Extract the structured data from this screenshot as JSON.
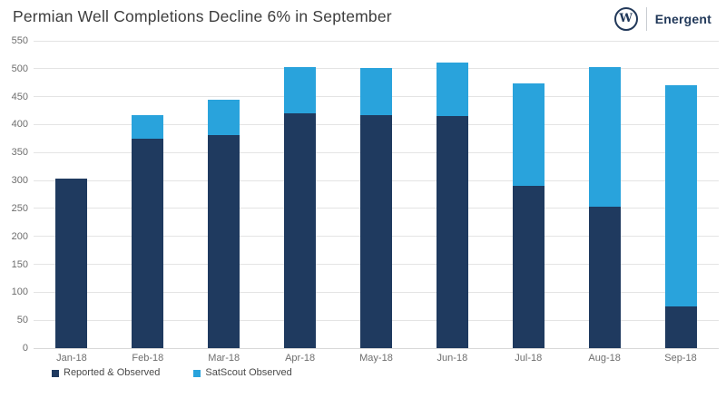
{
  "header": {
    "title": "Permian Well Completions Decline 6% in September",
    "logo": {
      "monogram": "W",
      "brand": "Energent"
    }
  },
  "colors": {
    "reported": "#1f3a5f",
    "satscout": "#29a3dc",
    "grid": "#e4e4e4",
    "axis_text": "#6e6e6e",
    "title_text": "#3d3d3d",
    "brand_navy": "#22395a"
  },
  "chart_data": {
    "type": "bar",
    "stacked": true,
    "title": "Permian Well Completions Decline 6% in September",
    "categories": [
      "Jan-18",
      "Feb-18",
      "Mar-18",
      "Apr-18",
      "May-18",
      "Jun-18",
      "Jul-18",
      "Aug-18",
      "Sep-18"
    ],
    "series": [
      {
        "name": "Reported & Observed",
        "color": "#1f3a5f",
        "values": [
          303,
          374,
          381,
          421,
          417,
          416,
          291,
          253,
          75
        ]
      },
      {
        "name": "SatScout Observed",
        "color": "#29a3dc",
        "values": [
          0,
          43,
          64,
          82,
          85,
          95,
          183,
          250,
          396
        ]
      }
    ],
    "totals": [
      303,
      417,
      445,
      503,
      502,
      511,
      474,
      503,
      471
    ],
    "xlabel": "",
    "ylabel": "",
    "ylim": [
      0,
      550
    ],
    "y_ticks": [
      0,
      50,
      100,
      150,
      200,
      250,
      300,
      350,
      400,
      450,
      500,
      550
    ],
    "grid": "horizontal",
    "legend_position": "bottom-left"
  }
}
